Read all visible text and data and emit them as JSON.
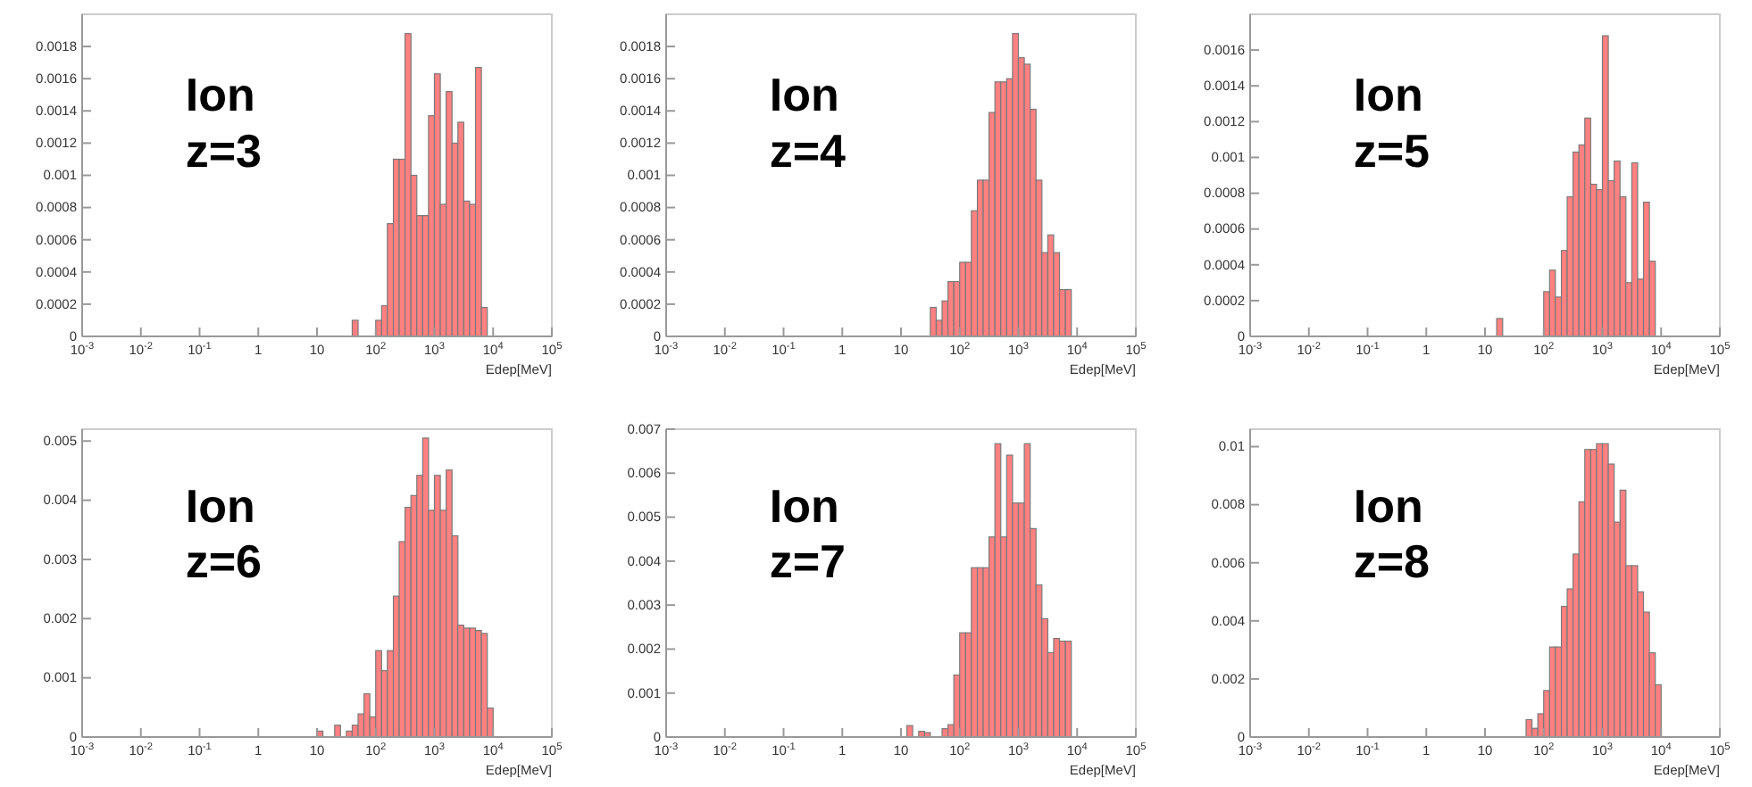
{
  "chart_data": [
    {
      "type": "histogram",
      "title": "Ion z=3",
      "xlabel": "Edep[MeV]",
      "log": "x",
      "color": "#ff8080",
      "xlim": [
        0.001,
        100000
      ],
      "ylim": [
        0,
        0.002
      ],
      "xticks": [
        {
          "value": 0.001,
          "label": "10$^{-3}$"
        },
        {
          "value": 0.01,
          "label": "10$^{-2}$"
        },
        {
          "value": 0.1,
          "label": "10$^{-1}$"
        },
        {
          "value": 1,
          "label": "1"
        },
        {
          "value": 10,
          "label": "10"
        },
        {
          "value": 100,
          "label": "10$^{2}$"
        },
        {
          "value": 1000,
          "label": "10$^{3}$"
        },
        {
          "value": 10000,
          "label": "10$^{4}$"
        },
        {
          "value": 100000,
          "label": "10$^{5}$"
        }
      ],
      "yticks": [
        0,
        0.0002,
        0.0004,
        0.0006,
        0.0008,
        0.001,
        0.0012,
        0.0014,
        0.0016,
        0.0018
      ],
      "bins": [
        39.8,
        50.1,
        63.1,
        79.4,
        100,
        126,
        158,
        200,
        251,
        316,
        398,
        501,
        631,
        794,
        1000,
        1259,
        1585,
        1995,
        2512,
        3162,
        3981,
        5012,
        6310,
        7943
      ],
      "values": [
        0.0001,
        0,
        0,
        0,
        0.0001,
        0.00019,
        0.0007,
        0.0011,
        0.0011,
        0.00188,
        0.001,
        0.00075,
        0.00075,
        0.00137,
        0.00163,
        0.00082,
        0.00152,
        0.0012,
        0.00133,
        0.00084,
        0.00082,
        0.00167,
        0.00018
      ]
    },
    {
      "type": "histogram",
      "title": "Ion z=4",
      "xlabel": "Edep[MeV]",
      "log": "x",
      "color": "#ff8080",
      "xlim": [
        0.001,
        100000
      ],
      "ylim": [
        0,
        0.002
      ],
      "xticks": [
        {
          "value": 0.001,
          "label": "10$^{-3}$"
        },
        {
          "value": 0.01,
          "label": "10$^{-2}$"
        },
        {
          "value": 0.1,
          "label": "10$^{-1}$"
        },
        {
          "value": 1,
          "label": "1"
        },
        {
          "value": 10,
          "label": "10"
        },
        {
          "value": 100,
          "label": "10$^{2}$"
        },
        {
          "value": 1000,
          "label": "10$^{3}$"
        },
        {
          "value": 10000,
          "label": "10$^{4}$"
        },
        {
          "value": 100000,
          "label": "10$^{5}$"
        }
      ],
      "yticks": [
        0,
        0.0002,
        0.0004,
        0.0006,
        0.0008,
        0.001,
        0.0012,
        0.0014,
        0.0016,
        0.0018
      ],
      "bins": [
        31.6,
        39.8,
        50.1,
        63.1,
        79.4,
        100,
        126,
        158,
        200,
        251,
        316,
        398,
        501,
        631,
        794,
        1000,
        1259,
        1585,
        1995,
        2512,
        3162,
        3981,
        5012,
        6310,
        7943
      ],
      "values": [
        0.00018,
        0.0001,
        0.00022,
        0.00034,
        0.00034,
        0.00046,
        0.00046,
        0.00078,
        0.00097,
        0.00097,
        0.00139,
        0.00158,
        0.00158,
        0.0016,
        0.00188,
        0.00173,
        0.00169,
        0.00141,
        0.00097,
        0.00052,
        0.00063,
        0.00052,
        0.00029,
        0.00029
      ]
    },
    {
      "type": "histogram",
      "title": "Ion z=5",
      "xlabel": "Edep[MeV]",
      "log": "x",
      "color": "#ff8080",
      "xlim": [
        0.001,
        100000
      ],
      "ylim": [
        0,
        0.0018
      ],
      "xticks": [
        {
          "value": 0.001,
          "label": "10$^{-3}$"
        },
        {
          "value": 0.01,
          "label": "10$^{-2}$"
        },
        {
          "value": 0.1,
          "label": "10$^{-1}$"
        },
        {
          "value": 1,
          "label": "1"
        },
        {
          "value": 10,
          "label": "10"
        },
        {
          "value": 100,
          "label": "10$^{2}$"
        },
        {
          "value": 1000,
          "label": "10$^{3}$"
        },
        {
          "value": 10000,
          "label": "10$^{4}$"
        },
        {
          "value": 100000,
          "label": "10$^{5}$"
        }
      ],
      "yticks": [
        0,
        0.0002,
        0.0004,
        0.0006,
        0.0008,
        0.001,
        0.0012,
        0.0014,
        0.0016
      ],
      "bins": [
        15.8,
        20,
        25.1,
        31.6,
        39.8,
        50.1,
        63.1,
        79.4,
        100,
        126,
        158,
        200,
        251,
        316,
        398,
        501,
        631,
        794,
        1000,
        1259,
        1585,
        1995,
        2512,
        3162,
        3981,
        5012,
        6310,
        7943
      ],
      "values": [
        0.0001,
        0,
        0,
        0,
        0,
        0,
        0,
        0,
        0.00025,
        0.00037,
        0.00022,
        0.00048,
        0.00078,
        0.00103,
        0.00107,
        0.00122,
        0.00085,
        0.00082,
        0.00168,
        0.00087,
        0.00098,
        0.00078,
        0.0003,
        0.00097,
        0.00032,
        0.00075,
        0.00042
      ]
    },
    {
      "type": "histogram",
      "title": "Ion z=6",
      "xlabel": "Edep[MeV]",
      "log": "x",
      "color": "#ff8080",
      "xlim": [
        0.001,
        100000
      ],
      "ylim": [
        0,
        0.0052
      ],
      "xticks": [
        {
          "value": 0.001,
          "label": "10$^{-3}$"
        },
        {
          "value": 0.01,
          "label": "10$^{-2}$"
        },
        {
          "value": 0.1,
          "label": "10$^{-1}$"
        },
        {
          "value": 1,
          "label": "1"
        },
        {
          "value": 10,
          "label": "10"
        },
        {
          "value": 100,
          "label": "10$^{2}$"
        },
        {
          "value": 1000,
          "label": "10$^{3}$"
        },
        {
          "value": 10000,
          "label": "10$^{4}$"
        },
        {
          "value": 100000,
          "label": "10$^{5}$"
        }
      ],
      "yticks": [
        0,
        0.001,
        0.002,
        0.003,
        0.004,
        0.005
      ],
      "bins": [
        10,
        12.6,
        15.8,
        20,
        25.1,
        31.6,
        39.8,
        50.1,
        63.1,
        79.4,
        100,
        126,
        158,
        200,
        251,
        316,
        398,
        501,
        631,
        794,
        1000,
        1259,
        1585,
        1995,
        2512,
        3162,
        3981,
        5012,
        6310,
        7943,
        10000
      ],
      "values": [
        0.0001,
        0,
        0,
        0.0002,
        0,
        0.0001,
        0.0002,
        0.00039,
        0.00073,
        0.00034,
        0.00146,
        0.00112,
        0.00146,
        0.00238,
        0.0033,
        0.00388,
        0.00408,
        0.00442,
        0.00505,
        0.00383,
        0.00442,
        0.00383,
        0.00451,
        0.0034,
        0.00189,
        0.00184,
        0.00184,
        0.0018,
        0.00175,
        0.00049
      ]
    },
    {
      "type": "histogram",
      "title": "Ion z=7",
      "xlabel": "Edep[MeV]",
      "log": "x",
      "color": "#ff8080",
      "xlim": [
        0.001,
        100000
      ],
      "ylim": [
        0,
        0.007
      ],
      "xticks": [
        {
          "value": 0.001,
          "label": "10$^{-3}$"
        },
        {
          "value": 0.01,
          "label": "10$^{-2}$"
        },
        {
          "value": 0.1,
          "label": "10$^{-1}$"
        },
        {
          "value": 1,
          "label": "1"
        },
        {
          "value": 10,
          "label": "10"
        },
        {
          "value": 100,
          "label": "10$^{2}$"
        },
        {
          "value": 1000,
          "label": "10$^{3}$"
        },
        {
          "value": 10000,
          "label": "10$^{4}$"
        },
        {
          "value": 100000,
          "label": "10$^{5}$"
        }
      ],
      "yticks": [
        0,
        0.001,
        0.002,
        0.003,
        0.004,
        0.005,
        0.006,
        0.007
      ],
      "bins": [
        12.6,
        15.8,
        20,
        25.1,
        31.6,
        39.8,
        50.1,
        63.1,
        79.4,
        100,
        126,
        158,
        200,
        251,
        316,
        398,
        501,
        631,
        794,
        1000,
        1259,
        1585,
        1995,
        2512,
        3162,
        3981,
        5012,
        6310,
        7943
      ],
      "values": [
        0.00026,
        0,
        0.00013,
        0.0001,
        0,
        0,
        0.00019,
        0.00028,
        0.00141,
        0.00237,
        0.00237,
        0.00385,
        0.00385,
        0.00385,
        0.00455,
        0.00667,
        0.00455,
        0.00641,
        0.00532,
        0.00532,
        0.00667,
        0.00474,
        0.00346,
        0.00269,
        0.00192,
        0.00224,
        0.00218,
        0.00218
      ]
    },
    {
      "type": "histogram",
      "title": "Ion z=8",
      "xlabel": "Edep[MeV]",
      "log": "x",
      "color": "#ff8080",
      "xlim": [
        0.001,
        100000
      ],
      "ylim": [
        0,
        0.0106
      ],
      "xticks": [
        {
          "value": 0.001,
          "label": "10$^{-3}$"
        },
        {
          "value": 0.01,
          "label": "10$^{-2}$"
        },
        {
          "value": 0.1,
          "label": "10$^{-1}$"
        },
        {
          "value": 1,
          "label": "1"
        },
        {
          "value": 10,
          "label": "10"
        },
        {
          "value": 100,
          "label": "10$^{2}$"
        },
        {
          "value": 1000,
          "label": "10$^{3}$"
        },
        {
          "value": 10000,
          "label": "10$^{4}$"
        },
        {
          "value": 100000,
          "label": "10$^{5}$"
        }
      ],
      "yticks": [
        0,
        0.002,
        0.004,
        0.006,
        0.008,
        0.01
      ],
      "bins": [
        50.1,
        63.1,
        79.4,
        100,
        126,
        158,
        200,
        251,
        316,
        398,
        501,
        631,
        794,
        1000,
        1259,
        1585,
        1995,
        2512,
        3162,
        3981,
        5012,
        6310,
        7943,
        10000
      ],
      "values": [
        0.0006,
        0.0003,
        0.0008,
        0.0016,
        0.0031,
        0.0031,
        0.0045,
        0.0051,
        0.0063,
        0.0081,
        0.0099,
        0.0099,
        0.0101,
        0.0101,
        0.0094,
        0.0074,
        0.0085,
        0.0059,
        0.0059,
        0.005,
        0.0043,
        0.0029,
        0.0018
      ]
    }
  ]
}
